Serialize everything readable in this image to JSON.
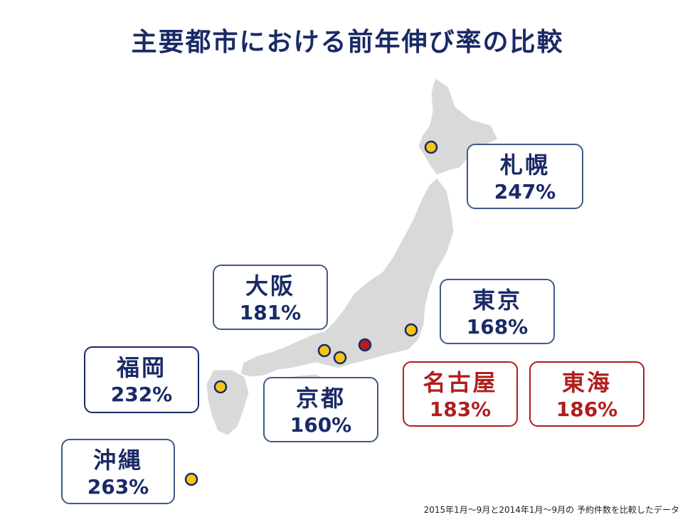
{
  "title": "主要都市における前年伸び率の比較",
  "footnote": "2015年1月～9月と2014年1月～9月の 予約件数を比較したデータ",
  "colors": {
    "title": "#1a2a66",
    "highlight": "#b01e1e",
    "marker": "#f5c518",
    "land": "#d9d9d9"
  },
  "cities": {
    "sapporo": {
      "name": "札幌",
      "pct": "247%"
    },
    "osaka": {
      "name": "大阪",
      "pct": "181%"
    },
    "tokyo": {
      "name": "東京",
      "pct": "168%"
    },
    "fukuoka": {
      "name": "福岡",
      "pct": "232%"
    },
    "kyoto": {
      "name": "京都",
      "pct": "160%"
    },
    "nagoya": {
      "name": "名古屋",
      "pct": "183%"
    },
    "tokai": {
      "name": "東海",
      "pct": "186%"
    },
    "okinawa": {
      "name": "沖縄",
      "pct": "263%"
    }
  }
}
